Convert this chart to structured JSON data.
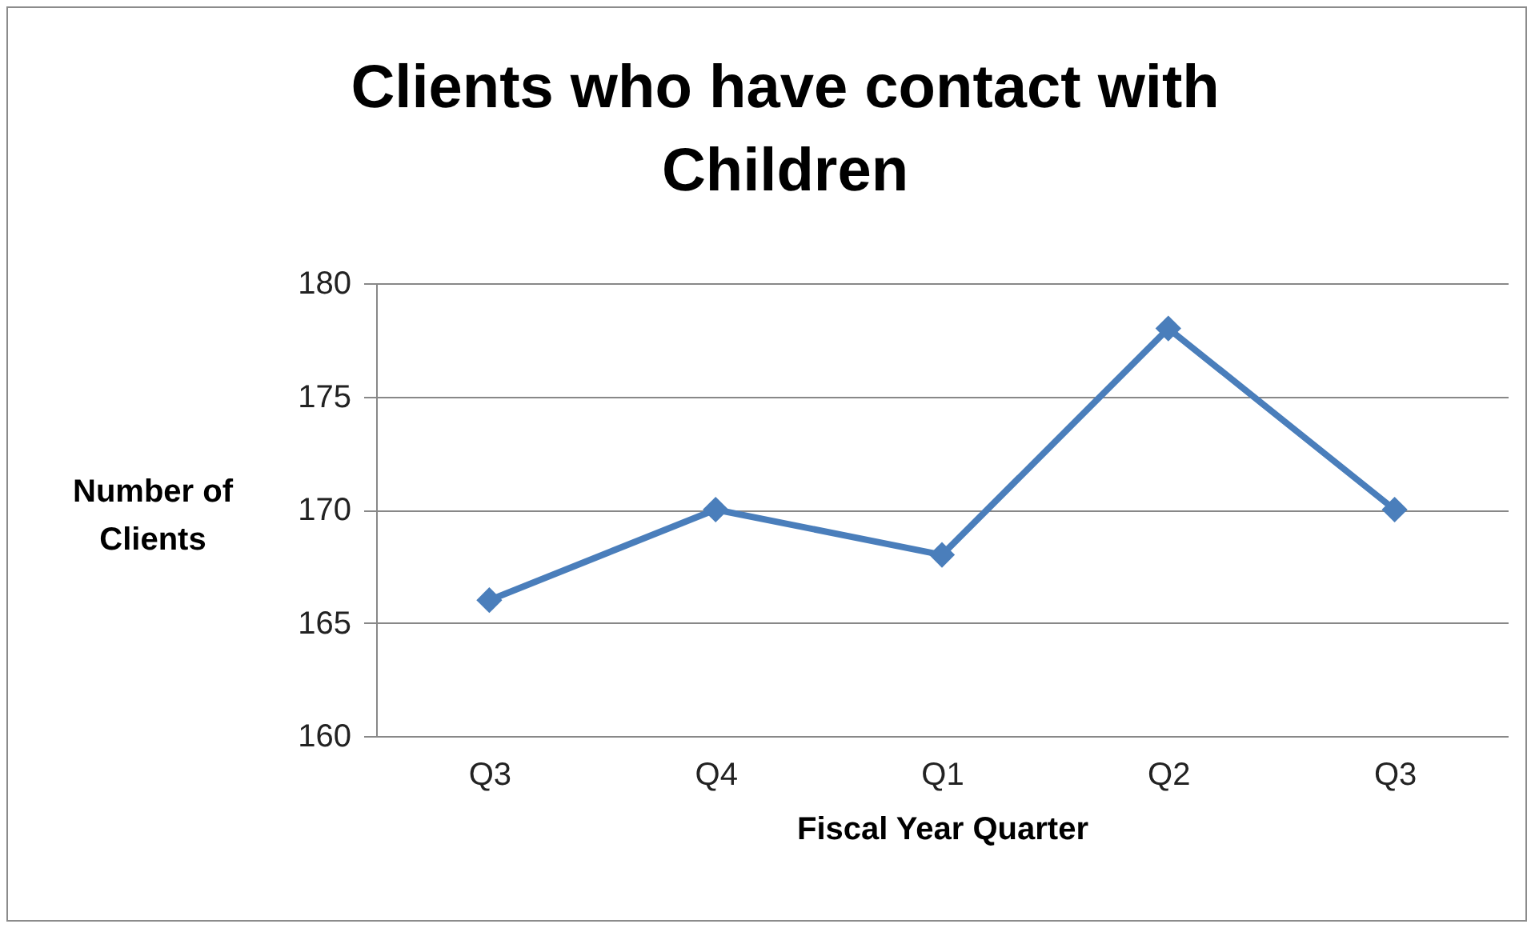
{
  "chart_data": {
    "type": "line",
    "title": "Clients who have contact with Children",
    "xlabel": "Fiscal Year Quarter",
    "ylabel": "Number of Clients",
    "categories": [
      "Q3",
      "Q4",
      "Q1",
      "Q2",
      "Q3"
    ],
    "values": [
      166,
      170,
      168,
      178,
      170
    ],
    "color": "#4a7ebb",
    "ylim": [
      160,
      180
    ],
    "yticks": [
      160,
      165,
      170,
      175,
      180
    ],
    "grid": "y",
    "marker": "diamond",
    "line_style": "solid"
  }
}
